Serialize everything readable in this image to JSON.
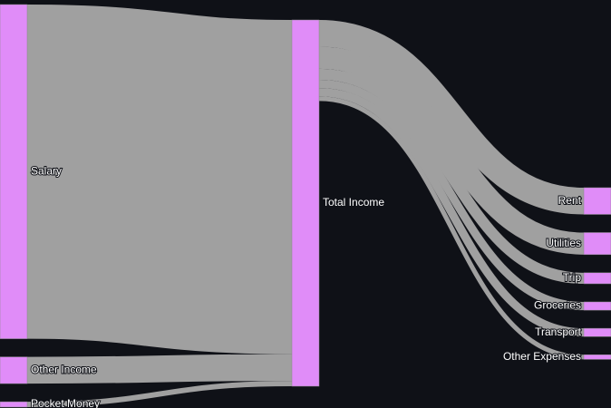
{
  "chart_data": {
    "type": "sankey",
    "nodes": [
      "Salary",
      "Other Income",
      "Pocket Money",
      "Total Income",
      "Rent",
      "Utilities",
      "Trip",
      "Groceries",
      "Transport",
      "Other Expenses"
    ],
    "links": [
      {
        "source": 0,
        "target": 3,
        "value": 5000
      },
      {
        "source": 1,
        "target": 3,
        "value": 400
      },
      {
        "source": 2,
        "target": 3,
        "value": 80
      },
      {
        "source": 3,
        "target": 4,
        "value": 400
      },
      {
        "source": 3,
        "target": 5,
        "value": 330
      },
      {
        "source": 3,
        "target": 6,
        "value": 165
      },
      {
        "source": 3,
        "target": 7,
        "value": 124
      },
      {
        "source": 3,
        "target": 8,
        "value": 124
      },
      {
        "source": 3,
        "target": 9,
        "value": 70
      }
    ],
    "node_color": "#e08cf8",
    "link_color": "#a0a0a0"
  }
}
